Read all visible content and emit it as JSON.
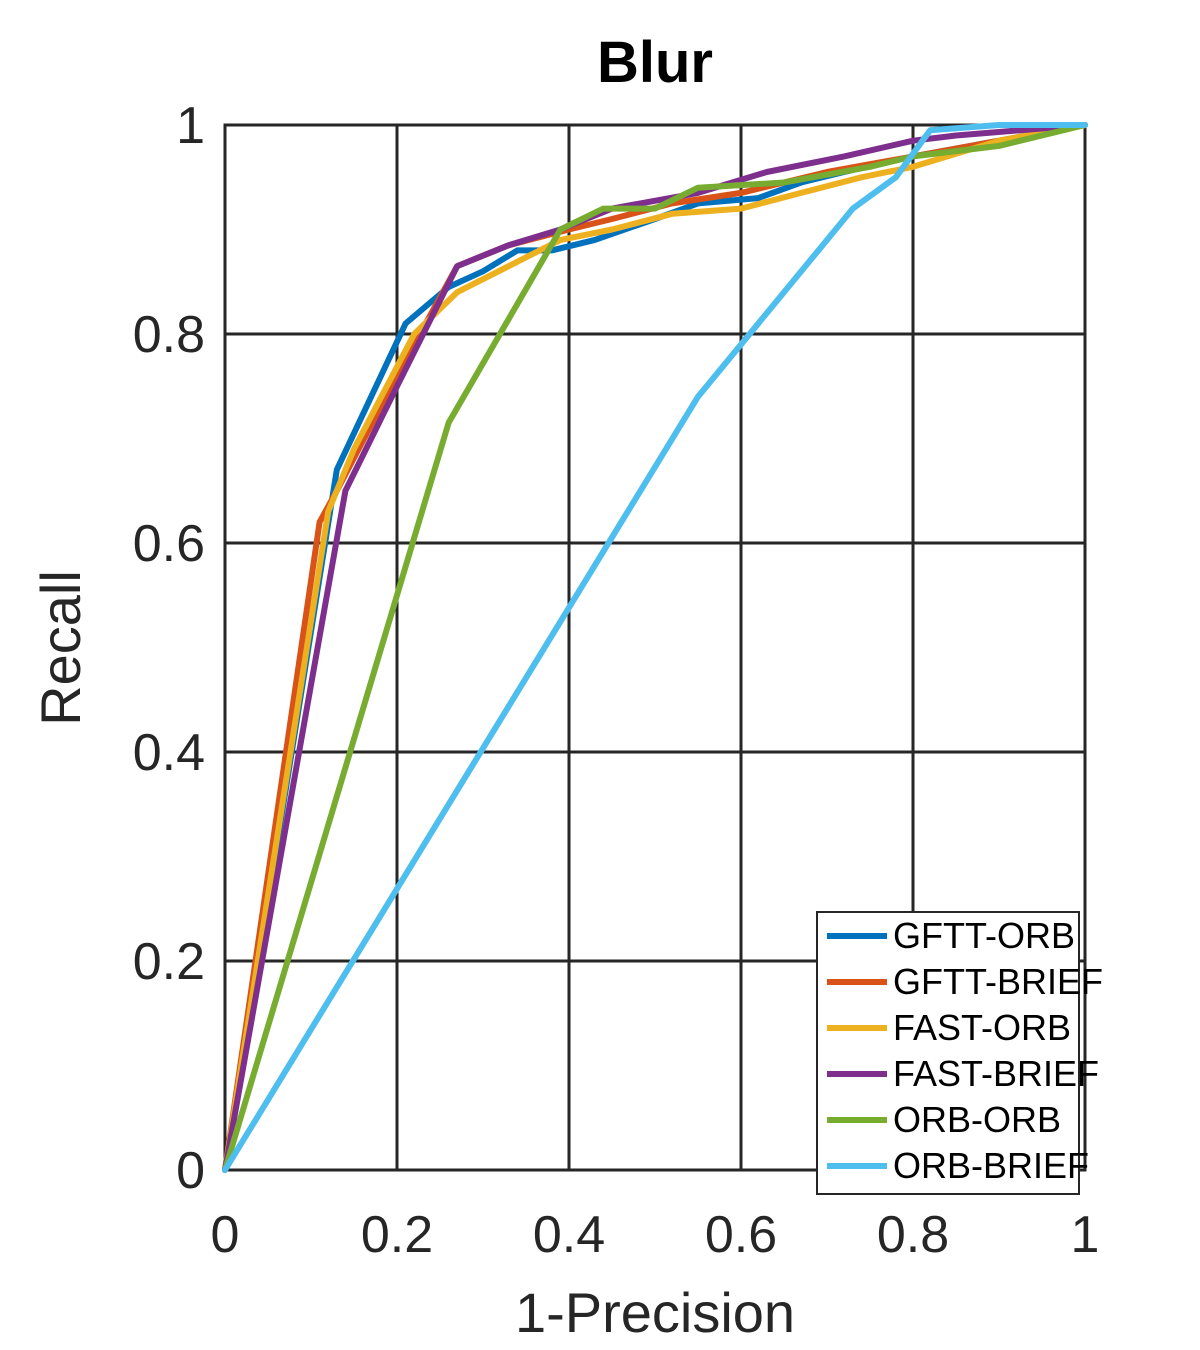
{
  "chart_data": {
    "type": "line",
    "title": "Blur",
    "xlabel": "1-Precision",
    "ylabel": "Recall",
    "xlim": [
      0,
      1
    ],
    "ylim": [
      0,
      1
    ],
    "xticks": [
      "0",
      "0.2",
      "0.4",
      "0.6",
      "0.8",
      "1"
    ],
    "yticks": [
      "0",
      "0.2",
      "0.4",
      "0.6",
      "0.8",
      "1"
    ],
    "grid": true,
    "legend_position": "bottom-right",
    "series": [
      {
        "name": "GFTT-ORB",
        "color": "#0072BD",
        "points": [
          [
            0,
            0
          ],
          [
            0.13,
            0.67
          ],
          [
            0.21,
            0.81
          ],
          [
            0.26,
            0.845
          ],
          [
            0.3,
            0.86
          ],
          [
            0.34,
            0.88
          ],
          [
            0.38,
            0.88
          ],
          [
            0.43,
            0.89
          ],
          [
            0.5,
            0.91
          ],
          [
            0.55,
            0.925
          ],
          [
            0.62,
            0.93
          ],
          [
            0.67,
            0.945
          ],
          [
            0.72,
            0.955
          ],
          [
            0.8,
            0.97
          ],
          [
            0.9,
            0.985
          ],
          [
            1,
            1
          ]
        ]
      },
      {
        "name": "GFTT-BRIEF",
        "color": "#D95319",
        "points": [
          [
            0,
            0
          ],
          [
            0.11,
            0.62
          ],
          [
            0.13,
            0.65
          ],
          [
            0.2,
            0.76
          ],
          [
            0.27,
            0.865
          ],
          [
            0.33,
            0.885
          ],
          [
            0.4,
            0.9
          ],
          [
            0.45,
            0.91
          ],
          [
            0.52,
            0.925
          ],
          [
            0.6,
            0.935
          ],
          [
            0.7,
            0.955
          ],
          [
            0.8,
            0.97
          ],
          [
            0.9,
            0.985
          ],
          [
            1,
            1
          ]
        ]
      },
      {
        "name": "FAST-ORB",
        "color": "#EDB120",
        "points": [
          [
            0,
            0
          ],
          [
            0.12,
            0.63
          ],
          [
            0.15,
            0.69
          ],
          [
            0.22,
            0.8
          ],
          [
            0.27,
            0.84
          ],
          [
            0.33,
            0.865
          ],
          [
            0.39,
            0.89
          ],
          [
            0.45,
            0.9
          ],
          [
            0.52,
            0.915
          ],
          [
            0.6,
            0.92
          ],
          [
            0.67,
            0.935
          ],
          [
            0.74,
            0.95
          ],
          [
            0.8,
            0.96
          ],
          [
            0.9,
            0.985
          ],
          [
            1,
            1
          ]
        ]
      },
      {
        "name": "FAST-BRIEF",
        "color": "#7E2F8E",
        "points": [
          [
            0,
            0
          ],
          [
            0.14,
            0.65
          ],
          [
            0.2,
            0.75
          ],
          [
            0.27,
            0.865
          ],
          [
            0.33,
            0.885
          ],
          [
            0.39,
            0.9
          ],
          [
            0.45,
            0.92
          ],
          [
            0.55,
            0.935
          ],
          [
            0.63,
            0.955
          ],
          [
            0.72,
            0.97
          ],
          [
            0.8,
            0.985
          ],
          [
            0.85,
            0.99
          ],
          [
            1,
            1
          ]
        ]
      },
      {
        "name": "ORB-ORB",
        "color": "#77AC30",
        "points": [
          [
            0,
            0
          ],
          [
            0.26,
            0.715
          ],
          [
            0.39,
            0.9
          ],
          [
            0.44,
            0.92
          ],
          [
            0.5,
            0.92
          ],
          [
            0.55,
            0.94
          ],
          [
            0.65,
            0.945
          ],
          [
            0.75,
            0.96
          ],
          [
            0.8,
            0.97
          ],
          [
            0.9,
            0.98
          ],
          [
            1,
            1
          ]
        ]
      },
      {
        "name": "ORB-BRIEF",
        "color": "#4DBEEE",
        "points": [
          [
            0,
            0
          ],
          [
            0.55,
            0.74
          ],
          [
            0.73,
            0.92
          ],
          [
            0.78,
            0.95
          ],
          [
            0.82,
            0.995
          ],
          [
            0.9,
            1
          ],
          [
            1,
            1
          ]
        ]
      }
    ]
  }
}
